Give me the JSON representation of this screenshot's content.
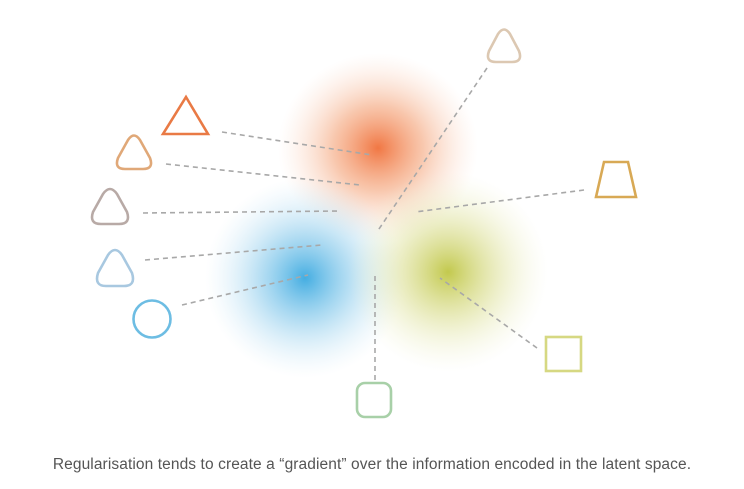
{
  "caption": "Regularisation tends to create a “gradient” over the information encoded in the latent space.",
  "colors": {
    "orange_cloud": "#f0703a",
    "blue_cloud": "#3aa9e0",
    "olive_cloud": "#bcc33a",
    "connector": "#a8a8a8"
  },
  "shapes": [
    {
      "name": "triangle-orange",
      "icon": "triangle-icon",
      "color": "#e97a45"
    },
    {
      "name": "rounded-triangle-tan",
      "icon": "rounded-triangle-icon",
      "color": "#e0a878"
    },
    {
      "name": "rounded-triangle-gray",
      "icon": "rounded-triangle-icon",
      "color": "#b8aaa6"
    },
    {
      "name": "rounded-triangle-lightblue",
      "icon": "rounded-triangle-icon",
      "color": "#a8c8e0"
    },
    {
      "name": "circle-blue",
      "icon": "circle-icon",
      "color": "#6dbde3"
    },
    {
      "name": "rounded-triangle-beige",
      "icon": "rounded-triangle-icon",
      "color": "#dcc8b2"
    },
    {
      "name": "trapezoid-gold",
      "icon": "trapezoid-icon",
      "color": "#d8a955"
    },
    {
      "name": "square-yellowgreen",
      "icon": "square-icon",
      "color": "#d6d882"
    },
    {
      "name": "rounded-square-green",
      "icon": "rounded-square-icon",
      "color": "#a8d0a8"
    }
  ]
}
